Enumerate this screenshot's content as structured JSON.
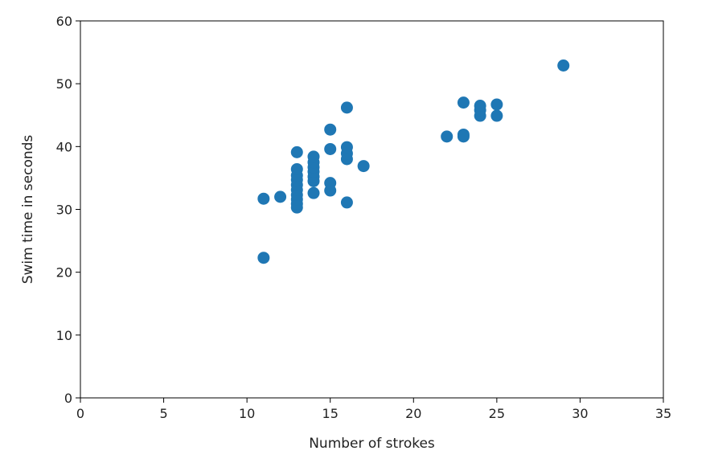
{
  "chart_data": {
    "type": "scatter",
    "title": "",
    "xlabel": "Number of strokes",
    "ylabel": "Swim time in seconds",
    "xlim": [
      0,
      35
    ],
    "ylim": [
      0,
      60
    ],
    "xticks": [
      0,
      5,
      10,
      15,
      20,
      25,
      30,
      35
    ],
    "yticks": [
      0,
      10,
      20,
      30,
      40,
      50,
      60
    ],
    "grid": false,
    "marker_color": "#1f77b4",
    "points": [
      {
        "x": 11,
        "y": 22.3
      },
      {
        "x": 11,
        "y": 31.7
      },
      {
        "x": 12,
        "y": 32.0
      },
      {
        "x": 13,
        "y": 30.3
      },
      {
        "x": 13,
        "y": 30.9
      },
      {
        "x": 13,
        "y": 31.6
      },
      {
        "x": 13,
        "y": 32.3
      },
      {
        "x": 13,
        "y": 33.1
      },
      {
        "x": 13,
        "y": 33.9
      },
      {
        "x": 13,
        "y": 34.7
      },
      {
        "x": 13,
        "y": 35.4
      },
      {
        "x": 13,
        "y": 36.4
      },
      {
        "x": 13,
        "y": 39.1
      },
      {
        "x": 14,
        "y": 32.6
      },
      {
        "x": 14,
        "y": 34.5
      },
      {
        "x": 14,
        "y": 35.2
      },
      {
        "x": 14,
        "y": 36.0
      },
      {
        "x": 14,
        "y": 36.7
      },
      {
        "x": 14,
        "y": 37.5
      },
      {
        "x": 14,
        "y": 38.4
      },
      {
        "x": 15,
        "y": 33.0
      },
      {
        "x": 15,
        "y": 34.2
      },
      {
        "x": 15,
        "y": 39.6
      },
      {
        "x": 15,
        "y": 42.7
      },
      {
        "x": 16,
        "y": 31.1
      },
      {
        "x": 16,
        "y": 38.0
      },
      {
        "x": 16,
        "y": 38.9
      },
      {
        "x": 16,
        "y": 39.9
      },
      {
        "x": 16,
        "y": 46.2
      },
      {
        "x": 17,
        "y": 36.9
      },
      {
        "x": 22,
        "y": 41.6
      },
      {
        "x": 23,
        "y": 41.6
      },
      {
        "x": 23,
        "y": 41.9
      },
      {
        "x": 23,
        "y": 47.0
      },
      {
        "x": 24,
        "y": 44.9
      },
      {
        "x": 24,
        "y": 45.8
      },
      {
        "x": 24,
        "y": 46.5
      },
      {
        "x": 25,
        "y": 44.9
      },
      {
        "x": 25,
        "y": 46.7
      },
      {
        "x": 29,
        "y": 52.9
      }
    ]
  }
}
